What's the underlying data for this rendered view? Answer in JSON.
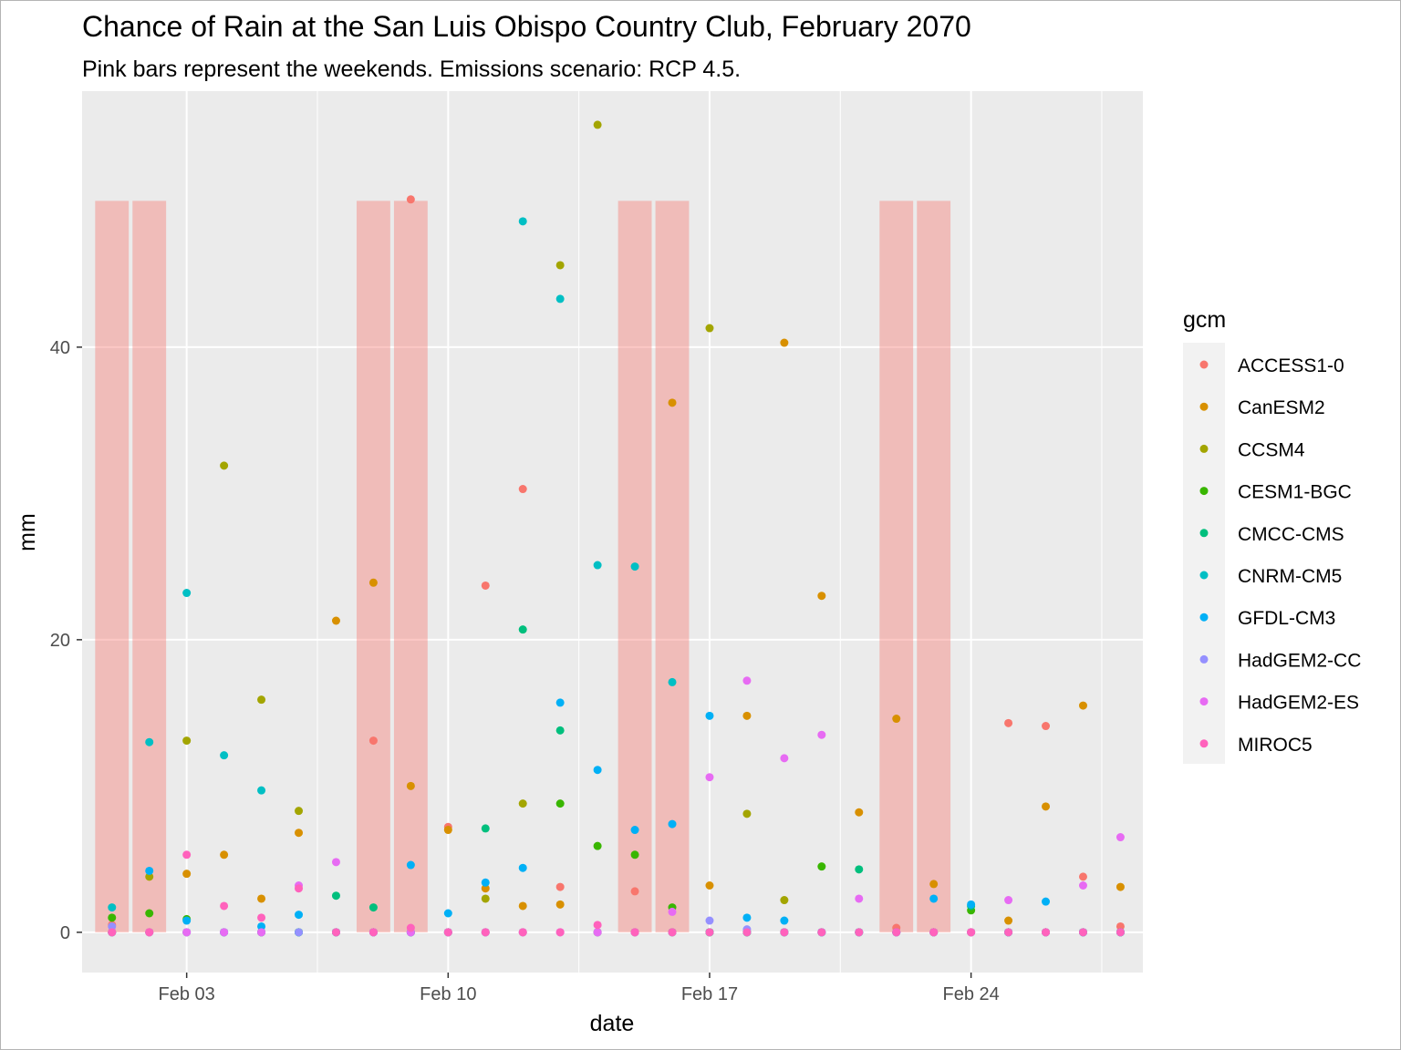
{
  "chart_data": {
    "type": "scatter",
    "title": "Chance of Rain at the San Luis Obispo Country Club, February 2070",
    "subtitle": "Pink bars represent the weekends. Emissions scenario: RCP 4.5.",
    "xlabel": "date",
    "ylabel": "mm",
    "x_ticks": [
      {
        "day": 3,
        "label": "Feb 03"
      },
      {
        "day": 10,
        "label": "Feb 10"
      },
      {
        "day": 17,
        "label": "Feb 17"
      },
      {
        "day": 24,
        "label": "Feb 24"
      }
    ],
    "y_ticks": [
      0,
      20,
      40
    ],
    "xlim": [
      0.2,
      28.6
    ],
    "ylim": [
      -2.75,
      57.5
    ],
    "grid": true,
    "legend_title": "gcm",
    "legend_position": "right",
    "weekend_bars": {
      "days": [
        1,
        2,
        8,
        9,
        15,
        16,
        22,
        23
      ],
      "height": 50,
      "color": "#f8766d"
    },
    "series": [
      {
        "name": "ACCESS1-0",
        "color": "#F8766D",
        "points": [
          [
            1,
            0.5
          ],
          [
            2,
            0
          ],
          [
            3,
            0
          ],
          [
            4,
            0
          ],
          [
            5,
            0
          ],
          [
            6,
            0
          ],
          [
            7,
            0
          ],
          [
            8,
            13.1
          ],
          [
            9,
            50.1
          ],
          [
            10,
            7.2
          ],
          [
            11,
            23.7
          ],
          [
            12,
            30.3
          ],
          [
            13,
            3.1
          ],
          [
            14,
            0
          ],
          [
            15,
            2.8
          ],
          [
            16,
            0
          ],
          [
            17,
            0
          ],
          [
            18,
            0
          ],
          [
            19,
            0
          ],
          [
            20,
            0
          ],
          [
            21,
            0
          ],
          [
            22,
            0.3
          ],
          [
            23,
            0
          ],
          [
            24,
            0
          ],
          [
            25,
            14.3
          ],
          [
            26,
            14.1
          ],
          [
            27,
            3.8
          ],
          [
            28,
            0.4
          ]
        ]
      },
      {
        "name": "CanESM2",
        "color": "#D89000",
        "points": [
          [
            1,
            0
          ],
          [
            2,
            0
          ],
          [
            3,
            4
          ],
          [
            4,
            5.3
          ],
          [
            5,
            2.3
          ],
          [
            6,
            6.8
          ],
          [
            7,
            21.3
          ],
          [
            8,
            23.9
          ],
          [
            9,
            10
          ],
          [
            10,
            7
          ],
          [
            11,
            3
          ],
          [
            12,
            1.8
          ],
          [
            13,
            1.9
          ],
          [
            14,
            0
          ],
          [
            15,
            0
          ],
          [
            16,
            36.2
          ],
          [
            17,
            3.2
          ],
          [
            18,
            14.8
          ],
          [
            19,
            40.3
          ],
          [
            20,
            23
          ],
          [
            21,
            8.2
          ],
          [
            22,
            14.6
          ],
          [
            23,
            3.3
          ],
          [
            24,
            0
          ],
          [
            25,
            0.8
          ],
          [
            26,
            8.6
          ],
          [
            27,
            15.5
          ],
          [
            28,
            3.1
          ]
        ]
      },
      {
        "name": "CCSM4",
        "color": "#A3A500",
        "points": [
          [
            1,
            0
          ],
          [
            2,
            3.8
          ],
          [
            3,
            13.1
          ],
          [
            4,
            31.9
          ],
          [
            5,
            15.9
          ],
          [
            6,
            8.3
          ],
          [
            7,
            0
          ],
          [
            8,
            0
          ],
          [
            9,
            0
          ],
          [
            10,
            0
          ],
          [
            11,
            2.3
          ],
          [
            12,
            8.8
          ],
          [
            13,
            45.6
          ],
          [
            14,
            55.2
          ],
          [
            15,
            0
          ],
          [
            16,
            0
          ],
          [
            17,
            41.3
          ],
          [
            18,
            8.1
          ],
          [
            19,
            2.2
          ],
          [
            20,
            0
          ],
          [
            21,
            0
          ],
          [
            22,
            0
          ],
          [
            23,
            0
          ],
          [
            24,
            0
          ],
          [
            25,
            0
          ],
          [
            26,
            0
          ],
          [
            27,
            0
          ],
          [
            28,
            0
          ]
        ]
      },
      {
        "name": "CESM1-BGC",
        "color": "#39B600",
        "points": [
          [
            1,
            1
          ],
          [
            2,
            1.3
          ],
          [
            3,
            0.9
          ],
          [
            4,
            0
          ],
          [
            5,
            0
          ],
          [
            6,
            0
          ],
          [
            7,
            0
          ],
          [
            8,
            0
          ],
          [
            9,
            0
          ],
          [
            10,
            0
          ],
          [
            11,
            0
          ],
          [
            12,
            0
          ],
          [
            13,
            8.8
          ],
          [
            14,
            5.9
          ],
          [
            15,
            5.3
          ],
          [
            16,
            1.7
          ],
          [
            17,
            0
          ],
          [
            18,
            0
          ],
          [
            19,
            0
          ],
          [
            20,
            4.5
          ],
          [
            21,
            0
          ],
          [
            22,
            0
          ],
          [
            23,
            0
          ],
          [
            24,
            1.5
          ],
          [
            25,
            0
          ],
          [
            26,
            0
          ],
          [
            27,
            0
          ],
          [
            28,
            0
          ]
        ]
      },
      {
        "name": "CMCC-CMS",
        "color": "#00BF7D",
        "points": [
          [
            1,
            0
          ],
          [
            2,
            0
          ],
          [
            3,
            0
          ],
          [
            4,
            0
          ],
          [
            5,
            0
          ],
          [
            6,
            0
          ],
          [
            7,
            2.5
          ],
          [
            8,
            1.7
          ],
          [
            9,
            0
          ],
          [
            10,
            0
          ],
          [
            11,
            7.1
          ],
          [
            12,
            20.7
          ],
          [
            13,
            13.8
          ],
          [
            14,
            0
          ],
          [
            15,
            0
          ],
          [
            16,
            0
          ],
          [
            17,
            0
          ],
          [
            18,
            0
          ],
          [
            19,
            0
          ],
          [
            20,
            0
          ],
          [
            21,
            4.3
          ],
          [
            22,
            0
          ],
          [
            23,
            0
          ],
          [
            24,
            1.8
          ],
          [
            25,
            0
          ],
          [
            26,
            0
          ],
          [
            27,
            0
          ],
          [
            28,
            0
          ]
        ]
      },
      {
        "name": "CNRM-CM5",
        "color": "#00BFC4",
        "points": [
          [
            1,
            1.7
          ],
          [
            2,
            13
          ],
          [
            3,
            23.2
          ],
          [
            4,
            12.1
          ],
          [
            5,
            9.7
          ],
          [
            6,
            0
          ],
          [
            7,
            0
          ],
          [
            8,
            0
          ],
          [
            9,
            0
          ],
          [
            10,
            0
          ],
          [
            11,
            0
          ],
          [
            12,
            48.6
          ],
          [
            13,
            43.3
          ],
          [
            14,
            25.1
          ],
          [
            15,
            25
          ],
          [
            16,
            17.1
          ],
          [
            17,
            0
          ],
          [
            18,
            0
          ],
          [
            19,
            0
          ],
          [
            20,
            0
          ],
          [
            21,
            0
          ],
          [
            22,
            0
          ],
          [
            23,
            0
          ],
          [
            24,
            0
          ],
          [
            25,
            0
          ],
          [
            26,
            0
          ],
          [
            27,
            0
          ],
          [
            28,
            0
          ]
        ]
      },
      {
        "name": "GFDL-CM3",
        "color": "#00B0F6",
        "points": [
          [
            1,
            0
          ],
          [
            2,
            4.2
          ],
          [
            3,
            0.8
          ],
          [
            4,
            0
          ],
          [
            5,
            0.4
          ],
          [
            6,
            1.2
          ],
          [
            7,
            0
          ],
          [
            8,
            0
          ],
          [
            9,
            4.6
          ],
          [
            10,
            1.3
          ],
          [
            11,
            3.4
          ],
          [
            12,
            4.4
          ],
          [
            13,
            15.7
          ],
          [
            14,
            11.1
          ],
          [
            15,
            7
          ],
          [
            16,
            7.4
          ],
          [
            17,
            14.8
          ],
          [
            18,
            1
          ],
          [
            19,
            0.8
          ],
          [
            20,
            0
          ],
          [
            21,
            0
          ],
          [
            22,
            0
          ],
          [
            23,
            2.3
          ],
          [
            24,
            1.9
          ],
          [
            25,
            0
          ],
          [
            26,
            2.1
          ],
          [
            27,
            0
          ],
          [
            28,
            0
          ]
        ]
      },
      {
        "name": "HadGEM2-CC",
        "color": "#9590FF",
        "points": [
          [
            1,
            0.4
          ],
          [
            2,
            0
          ],
          [
            3,
            0
          ],
          [
            4,
            0
          ],
          [
            5,
            0
          ],
          [
            6,
            0
          ],
          [
            7,
            0
          ],
          [
            8,
            0
          ],
          [
            9,
            0
          ],
          [
            10,
            0
          ],
          [
            11,
            0
          ],
          [
            12,
            0
          ],
          [
            13,
            0
          ],
          [
            14,
            0
          ],
          [
            15,
            0
          ],
          [
            16,
            0
          ],
          [
            17,
            0.8
          ],
          [
            18,
            0.2
          ],
          [
            19,
            0
          ],
          [
            20,
            0
          ],
          [
            21,
            0
          ],
          [
            22,
            0
          ],
          [
            23,
            0
          ],
          [
            24,
            0
          ],
          [
            25,
            0
          ],
          [
            26,
            0
          ],
          [
            27,
            0
          ],
          [
            28,
            0
          ]
        ]
      },
      {
        "name": "HadGEM2-ES",
        "color": "#E76BF3",
        "points": [
          [
            1,
            0
          ],
          [
            2,
            0
          ],
          [
            3,
            0
          ],
          [
            4,
            0
          ],
          [
            5,
            0
          ],
          [
            6,
            3.2
          ],
          [
            7,
            4.8
          ],
          [
            8,
            0
          ],
          [
            9,
            0
          ],
          [
            10,
            0
          ],
          [
            11,
            0
          ],
          [
            12,
            0
          ],
          [
            13,
            0
          ],
          [
            14,
            0
          ],
          [
            15,
            0
          ],
          [
            16,
            1.4
          ],
          [
            17,
            10.6
          ],
          [
            18,
            17.2
          ],
          [
            19,
            11.9
          ],
          [
            20,
            13.5
          ],
          [
            21,
            2.3
          ],
          [
            22,
            0
          ],
          [
            23,
            0
          ],
          [
            24,
            0
          ],
          [
            25,
            2.2
          ],
          [
            26,
            0
          ],
          [
            27,
            3.2
          ],
          [
            28,
            6.5
          ]
        ]
      },
      {
        "name": "MIROC5",
        "color": "#FF62BC",
        "points": [
          [
            1,
            0
          ],
          [
            2,
            0
          ],
          [
            3,
            5.3
          ],
          [
            4,
            1.8
          ],
          [
            5,
            1
          ],
          [
            6,
            3
          ],
          [
            7,
            0
          ],
          [
            8,
            0
          ],
          [
            9,
            0.3
          ],
          [
            10,
            0
          ],
          [
            11,
            0
          ],
          [
            12,
            0
          ],
          [
            13,
            0
          ],
          [
            14,
            0.5
          ],
          [
            15,
            0
          ],
          [
            16,
            0
          ],
          [
            17,
            0
          ],
          [
            18,
            0
          ],
          [
            19,
            0
          ],
          [
            20,
            0
          ],
          [
            21,
            0
          ],
          [
            22,
            0
          ],
          [
            23,
            0
          ],
          [
            24,
            0
          ],
          [
            25,
            0
          ],
          [
            26,
            0
          ],
          [
            27,
            0
          ],
          [
            28,
            0
          ]
        ]
      }
    ]
  }
}
